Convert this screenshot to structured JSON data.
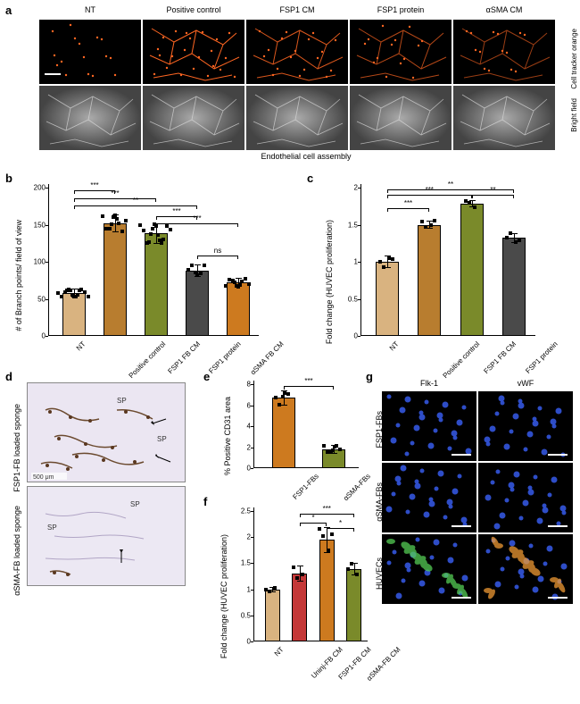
{
  "labels": {
    "a": "a",
    "b": "b",
    "c": "c",
    "d": "d",
    "e": "e",
    "f": "f",
    "g": "g"
  },
  "panel_a": {
    "columns": [
      "NT",
      "Positive control",
      "FSP1 CM",
      "FSP1 protein",
      "αSMA CM"
    ],
    "row_labels": [
      "Cell tracker orange",
      "Bright field"
    ],
    "bottom_caption": "Endothelial cell assembly",
    "orange_dots": [
      [
        10,
        12,
        20,
        30,
        40,
        15,
        50,
        60,
        70,
        80,
        25,
        35,
        45,
        55,
        65,
        75
      ],
      [
        8,
        18,
        28,
        38,
        48,
        58,
        68,
        78,
        88,
        98,
        12,
        22,
        32,
        42,
        52,
        62,
        72,
        82,
        92,
        14,
        44,
        74
      ],
      [
        10,
        20,
        30,
        40,
        50,
        60,
        70,
        80,
        90,
        15,
        25,
        35,
        45,
        55,
        65,
        75,
        85,
        95
      ],
      [
        12,
        22,
        32,
        42,
        52,
        62,
        72,
        16,
        26,
        36,
        46,
        56,
        66,
        76
      ],
      [
        10,
        20,
        30,
        40,
        50,
        60,
        70,
        15,
        25,
        35,
        45,
        55,
        65,
        75
      ]
    ]
  },
  "colors": {
    "bar1": "#d9b380",
    "bar2": "#b87d2f",
    "bar3": "#7a8a2a",
    "bar4": "#4a4a4a",
    "bar5": "#cd7a1f",
    "bar_red": "#c43838",
    "orange_dot": "#ff6622",
    "blue_nuc": "#3355dd",
    "green": "#55cc55",
    "vwf": "#ee9933"
  },
  "panel_b": {
    "y_title": "# of Branch points/\nfield of view",
    "ylim": [
      0,
      200
    ],
    "yticks": [
      0,
      50,
      100,
      150,
      200
    ],
    "categories": [
      "NT",
      "Positive control",
      "FSP1 FB CM",
      "FSP1 protein",
      "αSMA FB CM"
    ],
    "values": [
      58,
      152,
      138,
      88,
      72
    ],
    "errors": [
      6,
      12,
      14,
      8,
      6
    ],
    "bar_colors": [
      "#d9b380",
      "#b87d2f",
      "#7a8a2a",
      "#4a4a4a",
      "#cd7a1f"
    ],
    "sig": [
      {
        "from": 0,
        "to": 1,
        "y": 196,
        "text": "***"
      },
      {
        "from": 0,
        "to": 2,
        "y": 186,
        "text": "***"
      },
      {
        "from": 0,
        "to": 3,
        "y": 176,
        "text": "**"
      },
      {
        "from": 2,
        "to": 3,
        "y": 162,
        "text": "***"
      },
      {
        "from": 2,
        "to": 4,
        "y": 152,
        "text": "***"
      },
      {
        "from": 3,
        "to": 4,
        "y": 108,
        "text": "ns"
      }
    ]
  },
  "panel_c": {
    "y_title": "Fold change\n(HUVEC proliferation)",
    "ylim": [
      0,
      2.0
    ],
    "yticks": [
      0,
      0.5,
      1.0,
      1.5,
      2.0
    ],
    "categories": [
      "NT",
      "Positive control",
      "FSP1 FB CM",
      "FSP1 protein"
    ],
    "values": [
      1.0,
      1.5,
      1.78,
      1.32
    ],
    "errors": [
      0.08,
      0.06,
      0.05,
      0.07
    ],
    "bar_colors": [
      "#d9b380",
      "#b87d2f",
      "#7a8a2a",
      "#4a4a4a"
    ],
    "sig": [
      {
        "from": 0,
        "to": 3,
        "y": 1.98,
        "text": "**"
      },
      {
        "from": 0,
        "to": 2,
        "y": 1.9,
        "text": "***"
      },
      {
        "from": 0,
        "to": 1,
        "y": 1.72,
        "text": "***"
      },
      {
        "from": 2,
        "to": 3,
        "y": 1.9,
        "text": "**"
      }
    ]
  },
  "panel_d": {
    "row_labels": [
      "FSP1-FB loaded sponge",
      "αSMA-FB loaded sponge"
    ],
    "scale_text": "500 μm",
    "sp_text": "SP"
  },
  "panel_e": {
    "y_title": "% Positive CD31 area",
    "ylim": [
      0,
      8
    ],
    "yticks": [
      0,
      2,
      4,
      6,
      8
    ],
    "categories": [
      "FSP1-FBs",
      "αSMA-FBs"
    ],
    "values": [
      6.7,
      1.8
    ],
    "errors": [
      0.7,
      0.4
    ],
    "bar_colors": [
      "#cd7a1f",
      "#7a8a2a"
    ],
    "sig": [
      {
        "from": 0,
        "to": 1,
        "y": 7.8,
        "text": "***"
      }
    ]
  },
  "panel_f": {
    "y_title": "Fold change\n(HUVEC proliferation)",
    "ylim": [
      0,
      2.5
    ],
    "yticks": [
      0,
      0.5,
      1.0,
      1.5,
      2.0,
      2.5
    ],
    "categories": [
      "NT",
      "Uninj-FB CM",
      "FSP1-FB CM",
      "αSMA-FB CM"
    ],
    "values": [
      1.0,
      1.3,
      1.95,
      1.38
    ],
    "errors": [
      0.05,
      0.15,
      0.25,
      0.12
    ],
    "bar_colors": [
      "#d9b380",
      "#c43838",
      "#cd7a1f",
      "#7a8a2a"
    ],
    "sig": [
      {
        "from": 1,
        "to": 3,
        "y": 2.45,
        "text": "***"
      },
      {
        "from": 1,
        "to": 2,
        "y": 2.28,
        "text": "*"
      },
      {
        "from": 2,
        "to": 3,
        "y": 2.18,
        "text": "*"
      }
    ]
  },
  "panel_g": {
    "col_headers": [
      "Flk-1",
      "vWF"
    ],
    "row_labels": [
      "FSP1-FBs",
      "αSMA-FBs",
      "HUVECs"
    ]
  }
}
